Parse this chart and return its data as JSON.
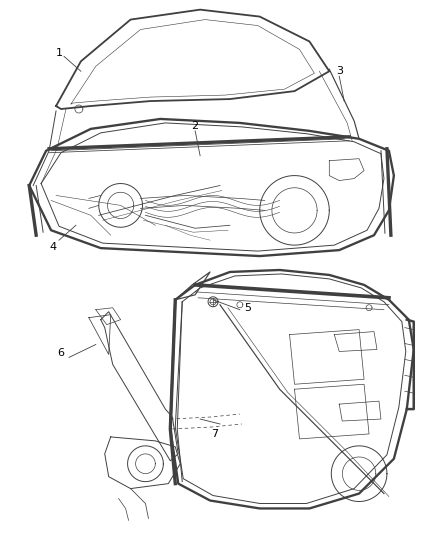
{
  "background_color": "#ffffff",
  "line_color": "#404040",
  "fig_width": 4.38,
  "fig_height": 5.33,
  "dpi": 100,
  "label_fontsize": 8
}
